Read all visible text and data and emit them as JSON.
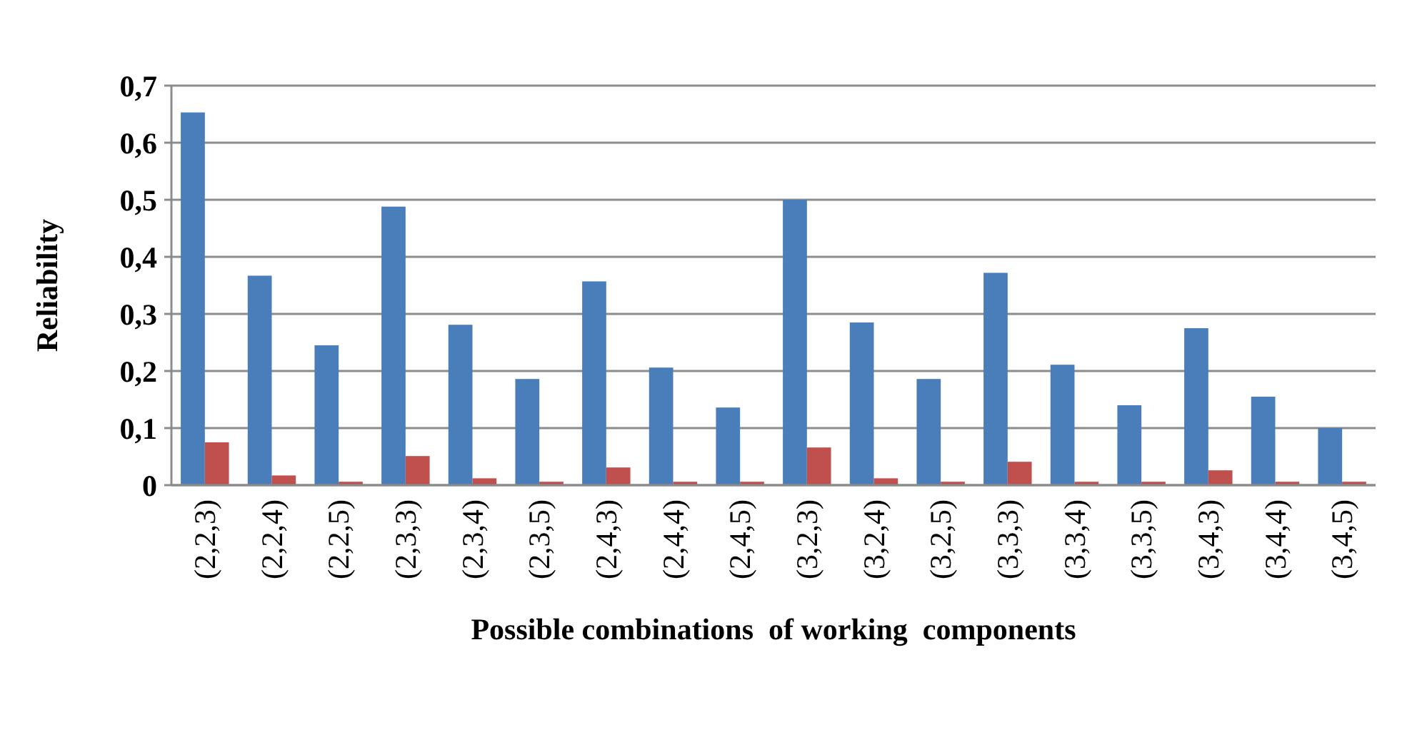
{
  "chart_data": {
    "type": "bar",
    "xlabel": "Possible combinations  of working  components",
    "ylabel": "Reliability",
    "categories": [
      "(2,2,3)",
      "(2,2,4)",
      "(2,2,5)",
      "(2,3,3)",
      "(2,3,4)",
      "(2,3,5)",
      "(2,4,3)",
      "(2,4,4)",
      "(2,4,5)",
      "(3,2,3)",
      "(3,2,4)",
      "(3,2,5)",
      "(3,3,3)",
      "(3,3,4)",
      "(3,3,5)",
      "(3,4,3)",
      "(3,4,4)",
      "(3,4,5)"
    ],
    "series": [
      {
        "color": "#4a7ebb",
        "values": [
          0.653,
          0.367,
          0.245,
          0.488,
          0.281,
          0.186,
          0.357,
          0.206,
          0.136,
          0.5,
          0.285,
          0.186,
          0.372,
          0.211,
          0.14,
          0.275,
          0.155,
          0.1
        ]
      },
      {
        "color": "#c0504d",
        "values": [
          0.075,
          0.017,
          0.006,
          0.051,
          0.012,
          0.006,
          0.031,
          0.006,
          0.006,
          0.066,
          0.012,
          0.006,
          0.041,
          0.006,
          0.006,
          0.026,
          0.006,
          0.006
        ]
      }
    ],
    "ylim": [
      0,
      0.7
    ],
    "yticks": [
      {
        "value": 0,
        "label": "0"
      },
      {
        "value": 0.1,
        "label": "0,1"
      },
      {
        "value": 0.2,
        "label": "0,2"
      },
      {
        "value": 0.3,
        "label": "0,3"
      },
      {
        "value": 0.4,
        "label": "0,4"
      },
      {
        "value": 0.5,
        "label": "0,5"
      },
      {
        "value": 0.6,
        "label": "0,6"
      },
      {
        "value": 0.7,
        "label": "0,7"
      }
    ],
    "grid": "y"
  }
}
